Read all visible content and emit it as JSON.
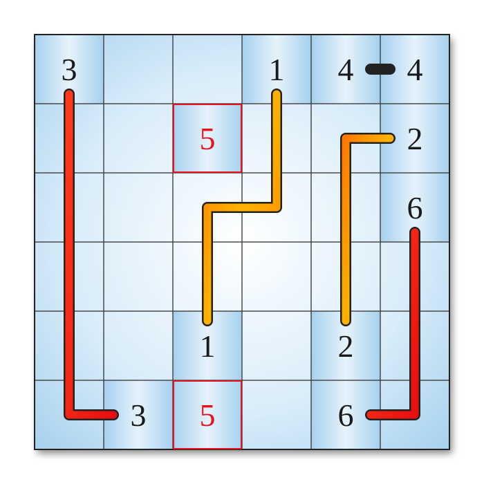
{
  "puzzle": {
    "rows": 6,
    "cols": 6,
    "colors": {
      "grid_line": "#3a3a3a",
      "cell_light": "#eef7fd",
      "cell_shade": "#a9d3ef",
      "clue_text": "#1a1a1a",
      "error_text": "#e8121c",
      "error_box": "#e8121c",
      "path_red": "#f01c10",
      "path_orange": "#ff9a00",
      "path_yellow": "#ffc000",
      "outline": "#222222"
    },
    "clues": [
      {
        "row": 0,
        "col": 0,
        "value": "3",
        "error": false
      },
      {
        "row": 0,
        "col": 3,
        "value": "1",
        "error": false
      },
      {
        "row": 0,
        "col": 4,
        "value": "4",
        "error": false
      },
      {
        "row": 0,
        "col": 5,
        "value": "4",
        "error": false
      },
      {
        "row": 1,
        "col": 2,
        "value": "5",
        "error": true
      },
      {
        "row": 1,
        "col": 5,
        "value": "2",
        "error": false
      },
      {
        "row": 2,
        "col": 5,
        "value": "6",
        "error": false
      },
      {
        "row": 4,
        "col": 2,
        "value": "1",
        "error": false
      },
      {
        "row": 4,
        "col": 4,
        "value": "2",
        "error": false
      },
      {
        "row": 5,
        "col": 1,
        "value": "3",
        "error": false
      },
      {
        "row": 5,
        "col": 2,
        "value": "5",
        "error": true
      },
      {
        "row": 5,
        "col": 4,
        "value": "6",
        "error": false
      }
    ],
    "shaded_cells": [
      [
        0,
        0
      ],
      [
        0,
        3
      ],
      [
        0,
        4
      ],
      [
        0,
        5
      ],
      [
        1,
        2
      ],
      [
        1,
        5
      ],
      [
        2,
        5
      ],
      [
        4,
        2
      ],
      [
        4,
        4
      ],
      [
        5,
        1
      ],
      [
        5,
        2
      ],
      [
        5,
        4
      ]
    ],
    "paths": [
      {
        "id": "path-3",
        "number": "3",
        "style": "red",
        "points": [
          [
            0,
            0
          ],
          [
            5,
            0
          ],
          [
            5,
            1
          ]
        ],
        "start_offset": "bottom",
        "end_offset": "left"
      },
      {
        "id": "path-1",
        "number": "1",
        "style": "orange",
        "points": [
          [
            0,
            3
          ],
          [
            2,
            3
          ],
          [
            2,
            2
          ],
          [
            4,
            2
          ]
        ],
        "start_offset": "bottom",
        "end_offset": "top"
      },
      {
        "id": "path-4",
        "number": "4",
        "style": "red",
        "points": [
          [
            0,
            4
          ],
          [
            0,
            5
          ]
        ],
        "start_offset": "right",
        "end_offset": "left"
      },
      {
        "id": "path-2",
        "number": "2",
        "style": "orange",
        "points": [
          [
            1,
            5
          ],
          [
            1,
            4
          ],
          [
            4,
            4
          ]
        ],
        "start_offset": "left",
        "end_offset": "top"
      },
      {
        "id": "path-6",
        "number": "6",
        "style": "red",
        "points": [
          [
            2,
            5
          ],
          [
            5,
            5
          ],
          [
            5,
            4
          ]
        ],
        "start_offset": "bottom",
        "end_offset": "right"
      }
    ]
  }
}
